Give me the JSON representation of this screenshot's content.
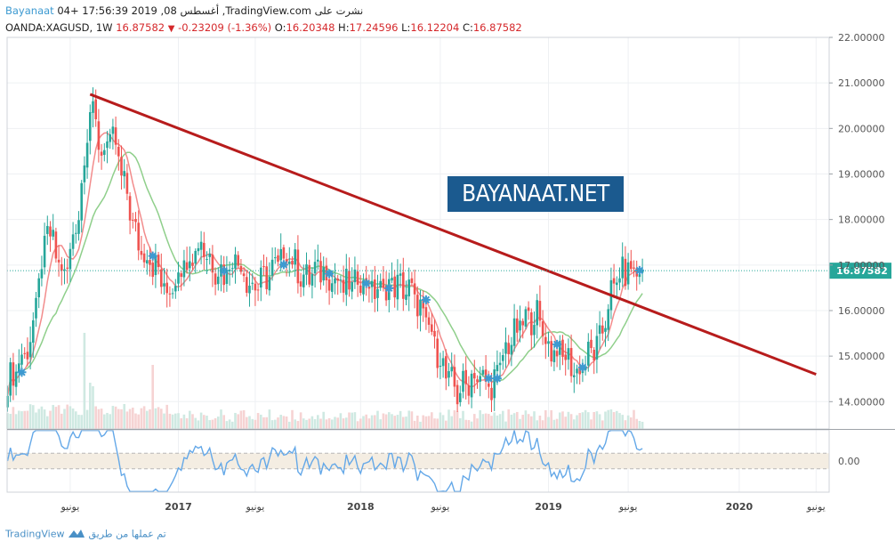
{
  "header": {
    "publisher": "Bayanaat",
    "published_line": "04+ 17:56:39 2019 ,08 أغسطس ,TradingView.com نشرت على",
    "symbol": "OANDA:XAGUSD, 1W",
    "last": "16.87582",
    "change": "-0.23209 (-1.36%)",
    "open_label": "O:",
    "open": "16.20348",
    "high_label": "H:",
    "high": "17.24596",
    "low_label": "L:",
    "low": "16.12204",
    "close_label": "C:",
    "close": "16.87582"
  },
  "watermark": "BAYANAAT.NET",
  "footer": {
    "brand": "TradingView",
    "made_with": "تم عملها من طريق"
  },
  "colors": {
    "up": "#26a69a",
    "down": "#ef5350",
    "trend": "#b71c1c",
    "ma_fast": "#f28c8c",
    "ma_slow": "#8fcf8b",
    "oscillator": "#64a8e8",
    "marker": "#3d9ad1"
  },
  "icons": [
    "down-arrow-icon",
    "tradingview-logo-icon"
  ],
  "chart_data": [
    {
      "type": "candlestick",
      "instrument": "OANDA:XAGUSD",
      "interval": "1W",
      "y_ticks": [
        "22.00000",
        "21.00000",
        "20.00000",
        "19.00000",
        "18.00000",
        "17.00000",
        "16.00000",
        "15.00000",
        "14.00000"
      ],
      "ylim": [
        13.4,
        22.0
      ],
      "x_ticks": [
        "يونيو",
        "2017",
        "يونيو",
        "2018",
        "يونيو",
        "2019",
        "يونيو",
        "2020",
        "يونيو"
      ],
      "last_price_label": "16.87582",
      "anchors": [
        {
          "w": 0,
          "p": 14.4
        },
        {
          "w": 8,
          "p": 15.3
        },
        {
          "w": 14,
          "p": 17.8
        },
        {
          "w": 20,
          "p": 16.7
        },
        {
          "w": 25,
          "p": 18.2
        },
        {
          "w": 29,
          "p": 20.5
        },
        {
          "w": 33,
          "p": 19.5
        },
        {
          "w": 37,
          "p": 19.8
        },
        {
          "w": 42,
          "p": 18.5
        },
        {
          "w": 46,
          "p": 17.4
        },
        {
          "w": 52,
          "p": 17.0
        },
        {
          "w": 56,
          "p": 16.3
        },
        {
          "w": 60,
          "p": 16.9
        },
        {
          "w": 64,
          "p": 17.2
        },
        {
          "w": 68,
          "p": 17.5
        },
        {
          "w": 72,
          "p": 17.0
        },
        {
          "w": 76,
          "p": 16.8
        },
        {
          "w": 80,
          "p": 17.2
        },
        {
          "w": 86,
          "p": 16.5
        },
        {
          "w": 92,
          "p": 16.8
        },
        {
          "w": 98,
          "p": 17.3
        },
        {
          "w": 104,
          "p": 16.7
        },
        {
          "w": 110,
          "p": 16.9
        },
        {
          "w": 118,
          "p": 16.5
        },
        {
          "w": 124,
          "p": 16.7
        },
        {
          "w": 130,
          "p": 16.4
        },
        {
          "w": 136,
          "p": 16.6
        },
        {
          "w": 142,
          "p": 16.4
        },
        {
          "w": 148,
          "p": 15.6
        },
        {
          "w": 154,
          "p": 14.6
        },
        {
          "w": 158,
          "p": 14.2
        },
        {
          "w": 164,
          "p": 14.6
        },
        {
          "w": 170,
          "p": 14.3
        },
        {
          "w": 176,
          "p": 15.3
        },
        {
          "w": 182,
          "p": 15.8
        },
        {
          "w": 186,
          "p": 15.9
        },
        {
          "w": 190,
          "p": 15.2
        },
        {
          "w": 196,
          "p": 15.0
        },
        {
          "w": 200,
          "p": 14.6
        },
        {
          "w": 204,
          "p": 15.0
        },
        {
          "w": 208,
          "p": 15.3
        },
        {
          "w": 212,
          "p": 16.4
        },
        {
          "w": 216,
          "p": 16.87
        }
      ],
      "trendline": {
        "start": {
          "w": 29,
          "p": 20.75
        },
        "end": {
          "w": 284,
          "p": 14.6
        }
      },
      "markers": [
        5,
        51,
        76,
        97,
        113,
        126,
        134,
        147,
        169,
        172,
        193,
        202,
        222
      ],
      "series": [
        {
          "values": "weekly candles OHLC"
        },
        {
          "values": "fast moving average"
        },
        {
          "values": "slow moving average"
        },
        {
          "values": "volume"
        }
      ]
    },
    {
      "type": "line",
      "ylim": [
        -1.0,
        1.0
      ],
      "y_ticks": [
        "0.00"
      ],
      "levels": [
        0.25,
        -0.25
      ]
    }
  ]
}
